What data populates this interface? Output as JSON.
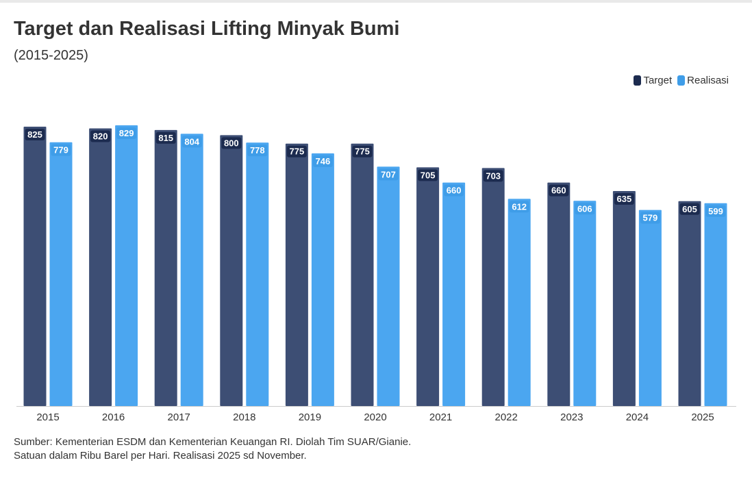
{
  "title": "Target dan Realisasi Lifting Minyak Bumi",
  "subtitle": "(2015-2025)",
  "footer": {
    "source": "Sumber: Kementerian ESDM dan Kementerian Keuangan RI. Diolah Tim SUAR/Gianie.",
    "note": "Satuan dalam Ribu Barel per Hari. Realisasi 2025 sd November."
  },
  "colors": {
    "target": "#3d4e74",
    "realisasi": "#4ba6f0",
    "label_bg_target": "#1c2b4f",
    "label_bg_realisasi": "#3f9de8",
    "axis": "#cccccc"
  },
  "chart_data": {
    "type": "bar",
    "categories": [
      "2015",
      "2016",
      "2017",
      "2018",
      "2019",
      "2020",
      "2021",
      "2022",
      "2023",
      "2024",
      "2025"
    ],
    "series": [
      {
        "name": "Target",
        "values": [
          825,
          820,
          815,
          800,
          775,
          775,
          705,
          703,
          660,
          635,
          605
        ]
      },
      {
        "name": "Realisasi",
        "values": [
          779,
          829,
          804,
          778,
          746,
          707,
          660,
          612,
          606,
          579,
          599
        ]
      }
    ],
    "ylim": [
      0,
      829
    ],
    "legend": "top-right",
    "grid": false,
    "data_labels": true
  }
}
